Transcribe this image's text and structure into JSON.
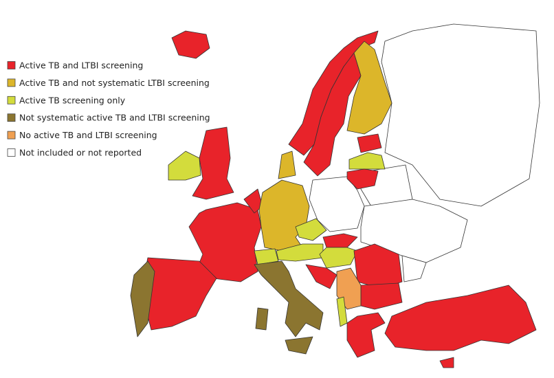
{
  "legend": {
    "items": [
      {
        "label": "Active TB and LTBI screening",
        "color": "#e8232a"
      },
      {
        "label": "Active TB and not systematic LTBI screening",
        "color": "#dcb62a"
      },
      {
        "label": "Active TB screening only",
        "color": "#d3dc3c"
      },
      {
        "label": "Not systematic active TB and LTBI screening",
        "color": "#8b7530"
      },
      {
        "label": "No active TB and LTBI screening",
        "color": "#f0a052"
      },
      {
        "label": "Not included or not reported",
        "color": "#ffffff"
      }
    ]
  }
}
